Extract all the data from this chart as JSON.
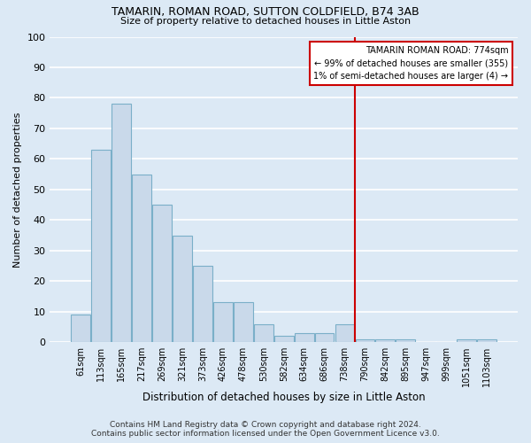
{
  "title": "TAMARIN, ROMAN ROAD, SUTTON COLDFIELD, B74 3AB",
  "subtitle": "Size of property relative to detached houses in Little Aston",
  "xlabel": "Distribution of detached houses by size in Little Aston",
  "ylabel": "Number of detached properties",
  "categories": [
    "61sqm",
    "113sqm",
    "165sqm",
    "217sqm",
    "269sqm",
    "321sqm",
    "373sqm",
    "426sqm",
    "478sqm",
    "530sqm",
    "582sqm",
    "634sqm",
    "686sqm",
    "738sqm",
    "790sqm",
    "842sqm",
    "895sqm",
    "947sqm",
    "999sqm",
    "1051sqm",
    "1103sqm"
  ],
  "values": [
    9,
    63,
    78,
    55,
    45,
    35,
    25,
    13,
    13,
    6,
    2,
    3,
    3,
    6,
    1,
    1,
    1,
    0,
    0,
    1,
    1
  ],
  "bar_color": "#c9d9ea",
  "bar_edge_color": "#7aafc8",
  "background_color": "#dce9f5",
  "plot_bg_color": "#dce9f5",
  "grid_color": "#ffffff",
  "marker_line_index": 14,
  "marker_label": "TAMARIN ROMAN ROAD: 774sqm",
  "marker_line1": "← 99% of detached houses are smaller (355)",
  "marker_line2": "1% of semi-detached houses are larger (4) →",
  "annotation_box_color": "#ffffff",
  "annotation_border_color": "#cc0000",
  "marker_line_color": "#cc0000",
  "ylim": [
    0,
    100
  ],
  "yticks": [
    0,
    10,
    20,
    30,
    40,
    50,
    60,
    70,
    80,
    90,
    100
  ],
  "footer_line1": "Contains HM Land Registry data © Crown copyright and database right 2024.",
  "footer_line2": "Contains public sector information licensed under the Open Government Licence v3.0."
}
